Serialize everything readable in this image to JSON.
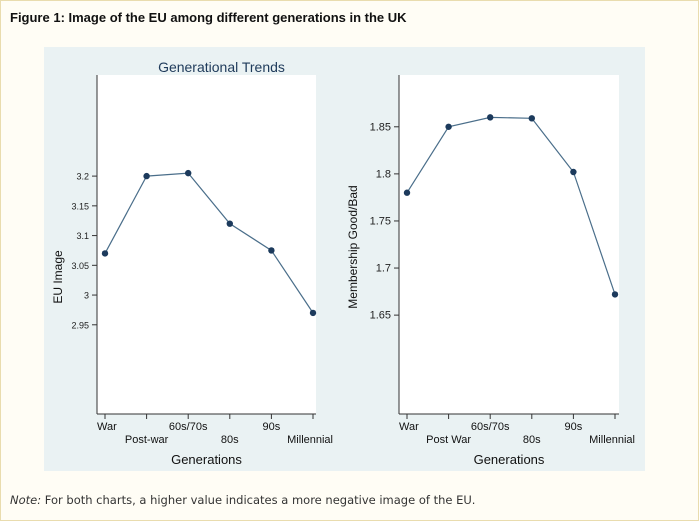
{
  "figure": {
    "title": "Figure 1: Image of the EU among different generations in the UK",
    "note_label": "Note:",
    "note_text": " For both charts, a higher value indicates a more negative image of the EU."
  },
  "chart_data": [
    {
      "type": "line",
      "title": "Generational Trends",
      "xlabel": "Generations",
      "ylabel": "EU Image",
      "categories": [
        "War",
        "Post-war",
        "60s/70s",
        "80s",
        "90s",
        "Millennial"
      ],
      "values": [
        3.07,
        3.2,
        3.205,
        3.12,
        3.075,
        2.97
      ],
      "yticks": [
        "2.95",
        "3",
        "3.05",
        "3.1",
        "3.15",
        "3.2"
      ],
      "ylim": [
        2.8,
        3.37
      ],
      "grid": false,
      "colors": {
        "line": "#4a6e8a",
        "marker": "#1c3a5c"
      }
    },
    {
      "type": "line",
      "title": "",
      "xlabel": "Generations",
      "ylabel": "Membership Good/Bad",
      "categories": [
        "War",
        "Post War",
        "60s/70s",
        "80s",
        "90s",
        "Millennial"
      ],
      "values": [
        1.78,
        1.85,
        1.86,
        1.859,
        1.802,
        1.672
      ],
      "yticks": [
        "1.65",
        "1.7",
        "1.75",
        "1.8",
        "1.85"
      ],
      "ylim": [
        1.545,
        1.905
      ],
      "grid": false,
      "colors": {
        "line": "#4a6e8a",
        "marker": "#1c3a5c"
      }
    }
  ]
}
